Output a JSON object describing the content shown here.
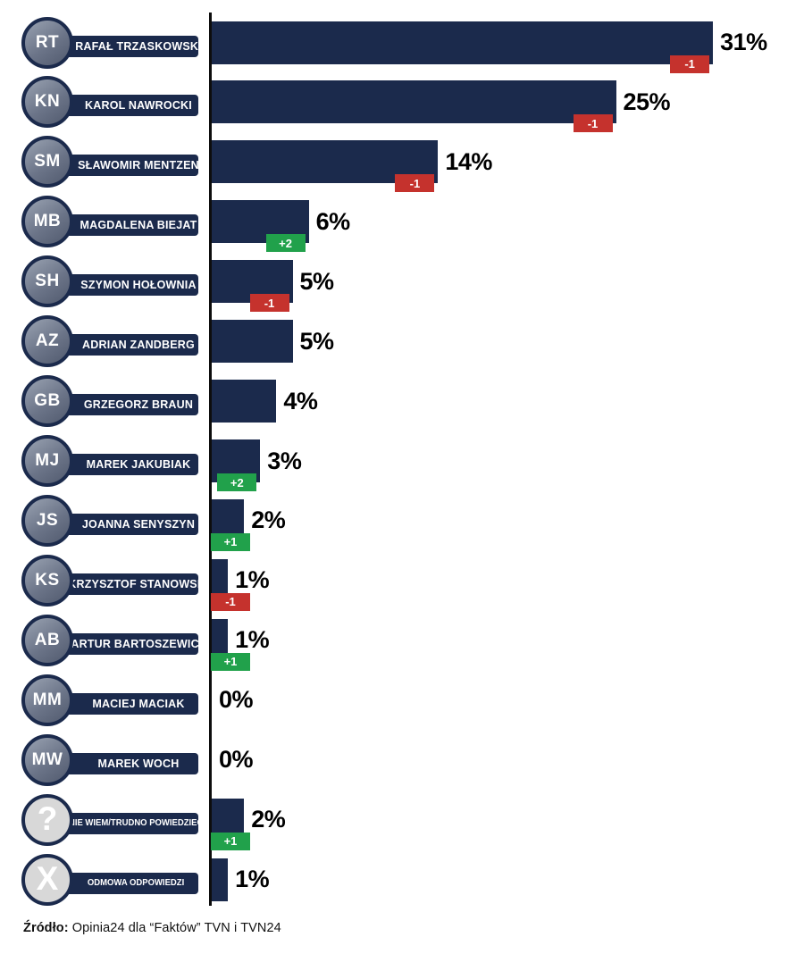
{
  "chart_data": {
    "type": "bar",
    "orientation": "horizontal",
    "title": "",
    "xlabel": "",
    "ylabel": "",
    "xlim": [
      0,
      36
    ],
    "grid": false,
    "unit": "%",
    "rows": [
      {
        "name": "RAFAŁ TRZASKOWSKI",
        "value": 31,
        "label": "31%",
        "change": "-1",
        "avatar": "photo"
      },
      {
        "name": "KAROL NAWROCKI",
        "value": 25,
        "label": "25%",
        "change": "-1",
        "avatar": "photo"
      },
      {
        "name": "SŁAWOMIR MENTZEN",
        "value": 14,
        "label": "14%",
        "change": "-1",
        "avatar": "photo"
      },
      {
        "name": "MAGDALENA BIEJAT",
        "value": 6,
        "label": "6%",
        "change": "+2",
        "avatar": "photo"
      },
      {
        "name": "SZYMON HOŁOWNIA",
        "value": 5,
        "label": "5%",
        "change": "-1",
        "avatar": "photo"
      },
      {
        "name": "ADRIAN ZANDBERG",
        "value": 5,
        "label": "5%",
        "change": "",
        "avatar": "photo"
      },
      {
        "name": "GRZEGORZ BRAUN",
        "value": 4,
        "label": "4%",
        "change": "",
        "avatar": "photo"
      },
      {
        "name": "MAREK JAKUBIAK",
        "value": 3,
        "label": "3%",
        "change": "+2",
        "avatar": "photo"
      },
      {
        "name": "JOANNA SENYSZYN",
        "value": 2,
        "label": "2%",
        "change": "+1",
        "avatar": "photo"
      },
      {
        "name": "KRZYSZTOF STANOWSKI",
        "value": 1,
        "label": "1%",
        "change": "-1",
        "avatar": "photo"
      },
      {
        "name": "ARTUR BARTOSZEWICZ",
        "value": 1,
        "label": "1%",
        "change": "+1",
        "avatar": "photo"
      },
      {
        "name": "MACIEJ MACIAK",
        "value": 0,
        "label": "0%",
        "change": "",
        "avatar": "photo"
      },
      {
        "name": "MAREK WOCH",
        "value": 0,
        "label": "0%",
        "change": "",
        "avatar": "photo"
      },
      {
        "name": "NIE WIEM/TRUDNO POWIEDZIEĆ",
        "value": 2,
        "label": "2%",
        "change": "+1",
        "avatar": "question",
        "glyph": "?",
        "icon": "question-mark-icon"
      },
      {
        "name": "ODMOWA ODPOWIEDZI",
        "value": 1,
        "label": "1%",
        "change": "",
        "avatar": "refuse",
        "glyph": "X",
        "icon": "x-icon"
      }
    ]
  },
  "footer": {
    "source_label": "Źródło:",
    "source_text": " Opinia24 dla “Faktów” TVN i TVN24"
  },
  "colors": {
    "bar_navy": "#1b2a4c",
    "decrease_red": "#c5322d",
    "increase_green": "#21a14b",
    "axis_black": "#0d0d0d",
    "neutral_circle_gray": "#d8d8d8"
  }
}
